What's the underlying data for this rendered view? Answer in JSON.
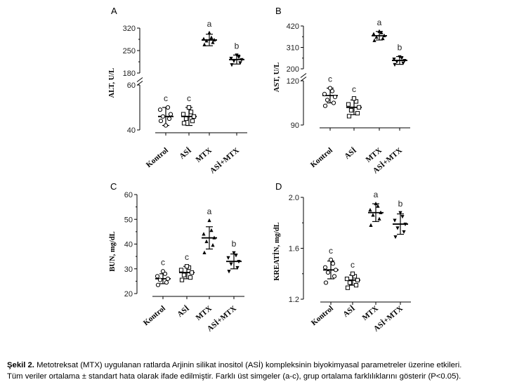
{
  "caption": {
    "label": "Şekil 2.",
    "line1": "Metotreksat (MTX) uygulanan ratlarda Arjinin silikat inositol (ASİ) kompleksinin biyokimyasal parametreler üzerine etkileri.",
    "line2": "Tüm veriler ortalama ± standart hata olarak ifade edilmiştir. Farklı üst simgeler (a-c), grup ortalama farklılıklarını gösterir (P<0.05)."
  },
  "chart_data": [
    {
      "panel": "A",
      "type": "scatter",
      "ylabel": "ALT, U/L",
      "categories": [
        "Kontrol",
        "ASİ",
        "MTX",
        "ASİ+MTX"
      ],
      "broken_axis": true,
      "lower_segment": {
        "ylim": [
          40,
          60
        ],
        "ticks": [
          40,
          60
        ]
      },
      "upper_segment": {
        "ylim": [
          180,
          320
        ],
        "ticks": [
          180,
          250,
          320
        ]
      },
      "groups": [
        {
          "name": "Kontrol",
          "marker": "circle",
          "letter": "c",
          "mean": 46,
          "sd": 4,
          "points": [
            44,
            45,
            46,
            47,
            49,
            50,
            42
          ]
        },
        {
          "name": "ASİ",
          "marker": "square",
          "letter": "c",
          "mean": 46,
          "sd": 4,
          "points": [
            43,
            44,
            45,
            46,
            47,
            48,
            50
          ]
        },
        {
          "name": "MTX",
          "marker": "triangle-up",
          "letter": "a",
          "mean": 283,
          "sd": 18,
          "points": [
            268,
            275,
            280,
            283,
            286,
            290,
            305
          ]
        },
        {
          "name": "ASİ+MTX",
          "marker": "triangle-down",
          "letter": "b",
          "mean": 222,
          "sd": 14,
          "points": [
            206,
            212,
            218,
            222,
            226,
            230,
            236
          ]
        }
      ]
    },
    {
      "panel": "B",
      "type": "scatter",
      "ylabel": "AST, U/L",
      "categories": [
        "Kontrol",
        "ASİ",
        "MTX",
        "ASİ+MTX"
      ],
      "broken_axis": true,
      "lower_segment": {
        "ylim": [
          90,
          120
        ],
        "ticks": [
          90,
          120
        ]
      },
      "upper_segment": {
        "ylim": [
          200,
          420
        ],
        "ticks": [
          200,
          310,
          420
        ]
      },
      "groups": [
        {
          "name": "Kontrol",
          "marker": "circle",
          "letter": "c",
          "mean": 110,
          "sd": 5,
          "points": [
            103,
            105,
            107,
            109,
            111,
            113,
            115
          ]
        },
        {
          "name": "ASİ",
          "marker": "square",
          "letter": "c",
          "mean": 102,
          "sd": 5,
          "points": [
            96,
            98,
            100,
            102,
            104,
            106,
            108
          ]
        },
        {
          "name": "MTX",
          "marker": "triangle-up",
          "letter": "a",
          "mean": 370,
          "sd": 22,
          "points": [
            345,
            355,
            362,
            370,
            378,
            385,
            392
          ]
        },
        {
          "name": "ASİ+MTX",
          "marker": "triangle-down",
          "letter": "b",
          "mean": 243,
          "sd": 20,
          "points": [
            222,
            230,
            238,
            243,
            250,
            256,
            262
          ]
        }
      ]
    },
    {
      "panel": "C",
      "type": "scatter",
      "ylabel": "BUN, mg/dL",
      "categories": [
        "Kontrol",
        "ASİ",
        "MTX",
        "ASİ+MTX"
      ],
      "ylim": [
        20,
        60
      ],
      "ticks": [
        20,
        30,
        40,
        50,
        60
      ],
      "groups": [
        {
          "name": "Kontrol",
          "marker": "circle",
          "letter": "c",
          "mean": 26,
          "sd": 2,
          "points": [
            23.5,
            24.5,
            25.5,
            26,
            27,
            28,
            29
          ]
        },
        {
          "name": "ASİ",
          "marker": "square",
          "letter": "c",
          "mean": 28.5,
          "sd": 2.5,
          "points": [
            25.5,
            26.5,
            27.5,
            28.5,
            29.5,
            30.5,
            31
          ]
        },
        {
          "name": "MTX",
          "marker": "triangle-up",
          "letter": "a",
          "mean": 42.5,
          "sd": 4.5,
          "points": [
            36.5,
            39.5,
            41,
            42.5,
            44,
            45.5,
            49.5
          ]
        },
        {
          "name": "ASİ+MTX",
          "marker": "triangle-down",
          "letter": "b",
          "mean": 33,
          "sd": 3,
          "points": [
            29,
            30.5,
            32,
            33,
            34.5,
            35.5,
            36.5
          ]
        }
      ]
    },
    {
      "panel": "D",
      "type": "scatter",
      "ylabel": "KREATİN, mg/dL",
      "categories": [
        "Kontrol",
        "ASİ",
        "MTX",
        "ASİ+MTX"
      ],
      "ylim": [
        1.2,
        2.0
      ],
      "ticks": [
        1.2,
        1.6,
        2.0
      ],
      "groups": [
        {
          "name": "Kontrol",
          "marker": "circle",
          "letter": "c",
          "mean": 1.43,
          "sd": 0.07,
          "points": [
            1.33,
            1.38,
            1.41,
            1.43,
            1.45,
            1.48,
            1.51
          ]
        },
        {
          "name": "ASİ",
          "marker": "square",
          "letter": "c",
          "mean": 1.35,
          "sd": 0.04,
          "points": [
            1.29,
            1.31,
            1.33,
            1.35,
            1.36,
            1.38,
            1.4
          ]
        },
        {
          "name": "MTX",
          "marker": "triangle-up",
          "letter": "a",
          "mean": 1.88,
          "sd": 0.07,
          "points": [
            1.78,
            1.83,
            1.86,
            1.88,
            1.9,
            1.93,
            1.95
          ]
        },
        {
          "name": "ASİ+MTX",
          "marker": "triangle-down",
          "letter": "b",
          "mean": 1.79,
          "sd": 0.08,
          "points": [
            1.69,
            1.73,
            1.76,
            1.79,
            1.82,
            1.85,
            1.88
          ]
        }
      ]
    }
  ]
}
